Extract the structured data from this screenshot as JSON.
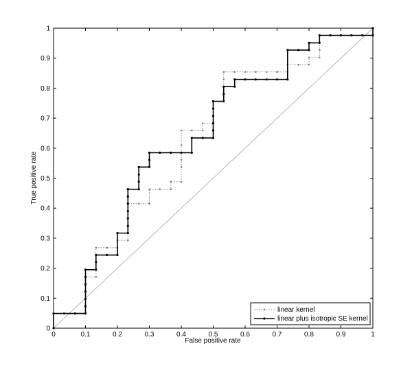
{
  "chart_data": {
    "type": "line",
    "title": "",
    "xlabel": "False positive rate",
    "ylabel": "True positive rate",
    "xlim": [
      0,
      1
    ],
    "ylim": [
      0,
      1
    ],
    "xticks": [
      "0",
      "0.1",
      "0.2",
      "0.3",
      "0.4",
      "0.5",
      "0.6",
      "0.7",
      "0.8",
      "0.9",
      "1"
    ],
    "yticks": [
      "0",
      "0.1",
      "0.2",
      "0.3",
      "0.4",
      "0.5",
      "0.6",
      "0.7",
      "0.8",
      "0.9",
      "1"
    ],
    "grid": false,
    "legend_position": "bottom-right",
    "diagonal": {
      "color": "#b4b4b4"
    },
    "series": [
      {
        "name": "linear kernel",
        "style": "dotted",
        "color": "#808080",
        "x": [
          0,
          0,
          0.033,
          0.067,
          0.1,
          0.1,
          0.1,
          0.1,
          0.1,
          0.1,
          0.133,
          0.133,
          0.133,
          0.167,
          0.2,
          0.2,
          0.2,
          0.233,
          0.233,
          0.233,
          0.233,
          0.233,
          0.267,
          0.3,
          0.3,
          0.333,
          0.367,
          0.367,
          0.4,
          0.4,
          0.4,
          0.4,
          0.4,
          0.433,
          0.467,
          0.467,
          0.5,
          0.5,
          0.5,
          0.5,
          0.533,
          0.533,
          0.533,
          0.533,
          0.533,
          0.567,
          0.6,
          0.633,
          0.667,
          0.7,
          0.733,
          0.733,
          0.767,
          0.8,
          0.8,
          0.833,
          0.833,
          0.833,
          0.867,
          0.9,
          0.933,
          0.967,
          1,
          1
        ],
        "y": [
          0,
          0.049,
          0.049,
          0.049,
          0.049,
          0.098,
          0.122,
          0.146,
          0.171,
          0.171,
          0.171,
          0.195,
          0.268,
          0.268,
          0.268,
          0.293,
          0.293,
          0.293,
          0.317,
          0.366,
          0.39,
          0.415,
          0.415,
          0.415,
          0.463,
          0.463,
          0.463,
          0.488,
          0.488,
          0.537,
          0.561,
          0.61,
          0.659,
          0.659,
          0.659,
          0.683,
          0.683,
          0.707,
          0.732,
          0.756,
          0.756,
          0.78,
          0.805,
          0.829,
          0.854,
          0.854,
          0.854,
          0.854,
          0.854,
          0.854,
          0.854,
          0.878,
          0.878,
          0.878,
          0.902,
          0.902,
          0.927,
          0.976,
          0.976,
          0.976,
          0.976,
          0.976,
          0.976,
          1
        ]
      },
      {
        "name": "linear plus isotropic SE kernel",
        "style": "solid",
        "color": "#000000",
        "x": [
          0,
          0,
          0.033,
          0.067,
          0.1,
          0.1,
          0.1,
          0.1,
          0.1,
          0.1,
          0.1,
          0.133,
          0.133,
          0.133,
          0.167,
          0.2,
          0.2,
          0.233,
          0.233,
          0.233,
          0.233,
          0.233,
          0.233,
          0.233,
          0.233,
          0.233,
          0.267,
          0.267,
          0.267,
          0.267,
          0.3,
          0.3,
          0.3,
          0.333,
          0.367,
          0.4,
          0.433,
          0.433,
          0.467,
          0.5,
          0.5,
          0.5,
          0.5,
          0.5,
          0.5,
          0.5,
          0.5,
          0.5,
          0.533,
          0.533,
          0.533,
          0.567,
          0.567,
          0.6,
          0.633,
          0.667,
          0.7,
          0.733,
          0.733,
          0.767,
          0.8,
          0.8,
          0.833,
          0.833,
          0.867,
          0.9,
          0.933,
          0.967,
          1,
          1
        ],
        "y": [
          0,
          0.049,
          0.049,
          0.049,
          0.049,
          0.073,
          0.098,
          0.122,
          0.146,
          0.171,
          0.195,
          0.195,
          0.22,
          0.244,
          0.244,
          0.244,
          0.317,
          0.317,
          0.341,
          0.366,
          0.39,
          0.415,
          0.439,
          0.439,
          0.463,
          0.463,
          0.463,
          0.488,
          0.512,
          0.537,
          0.537,
          0.561,
          0.585,
          0.585,
          0.585,
          0.585,
          0.585,
          0.634,
          0.634,
          0.634,
          0.659,
          0.659,
          0.683,
          0.683,
          0.707,
          0.732,
          0.756,
          0.756,
          0.756,
          0.78,
          0.805,
          0.805,
          0.829,
          0.829,
          0.829,
          0.829,
          0.829,
          0.829,
          0.927,
          0.927,
          0.927,
          0.951,
          0.951,
          0.976,
          0.976,
          0.976,
          0.976,
          0.976,
          0.976,
          1
        ]
      }
    ]
  }
}
